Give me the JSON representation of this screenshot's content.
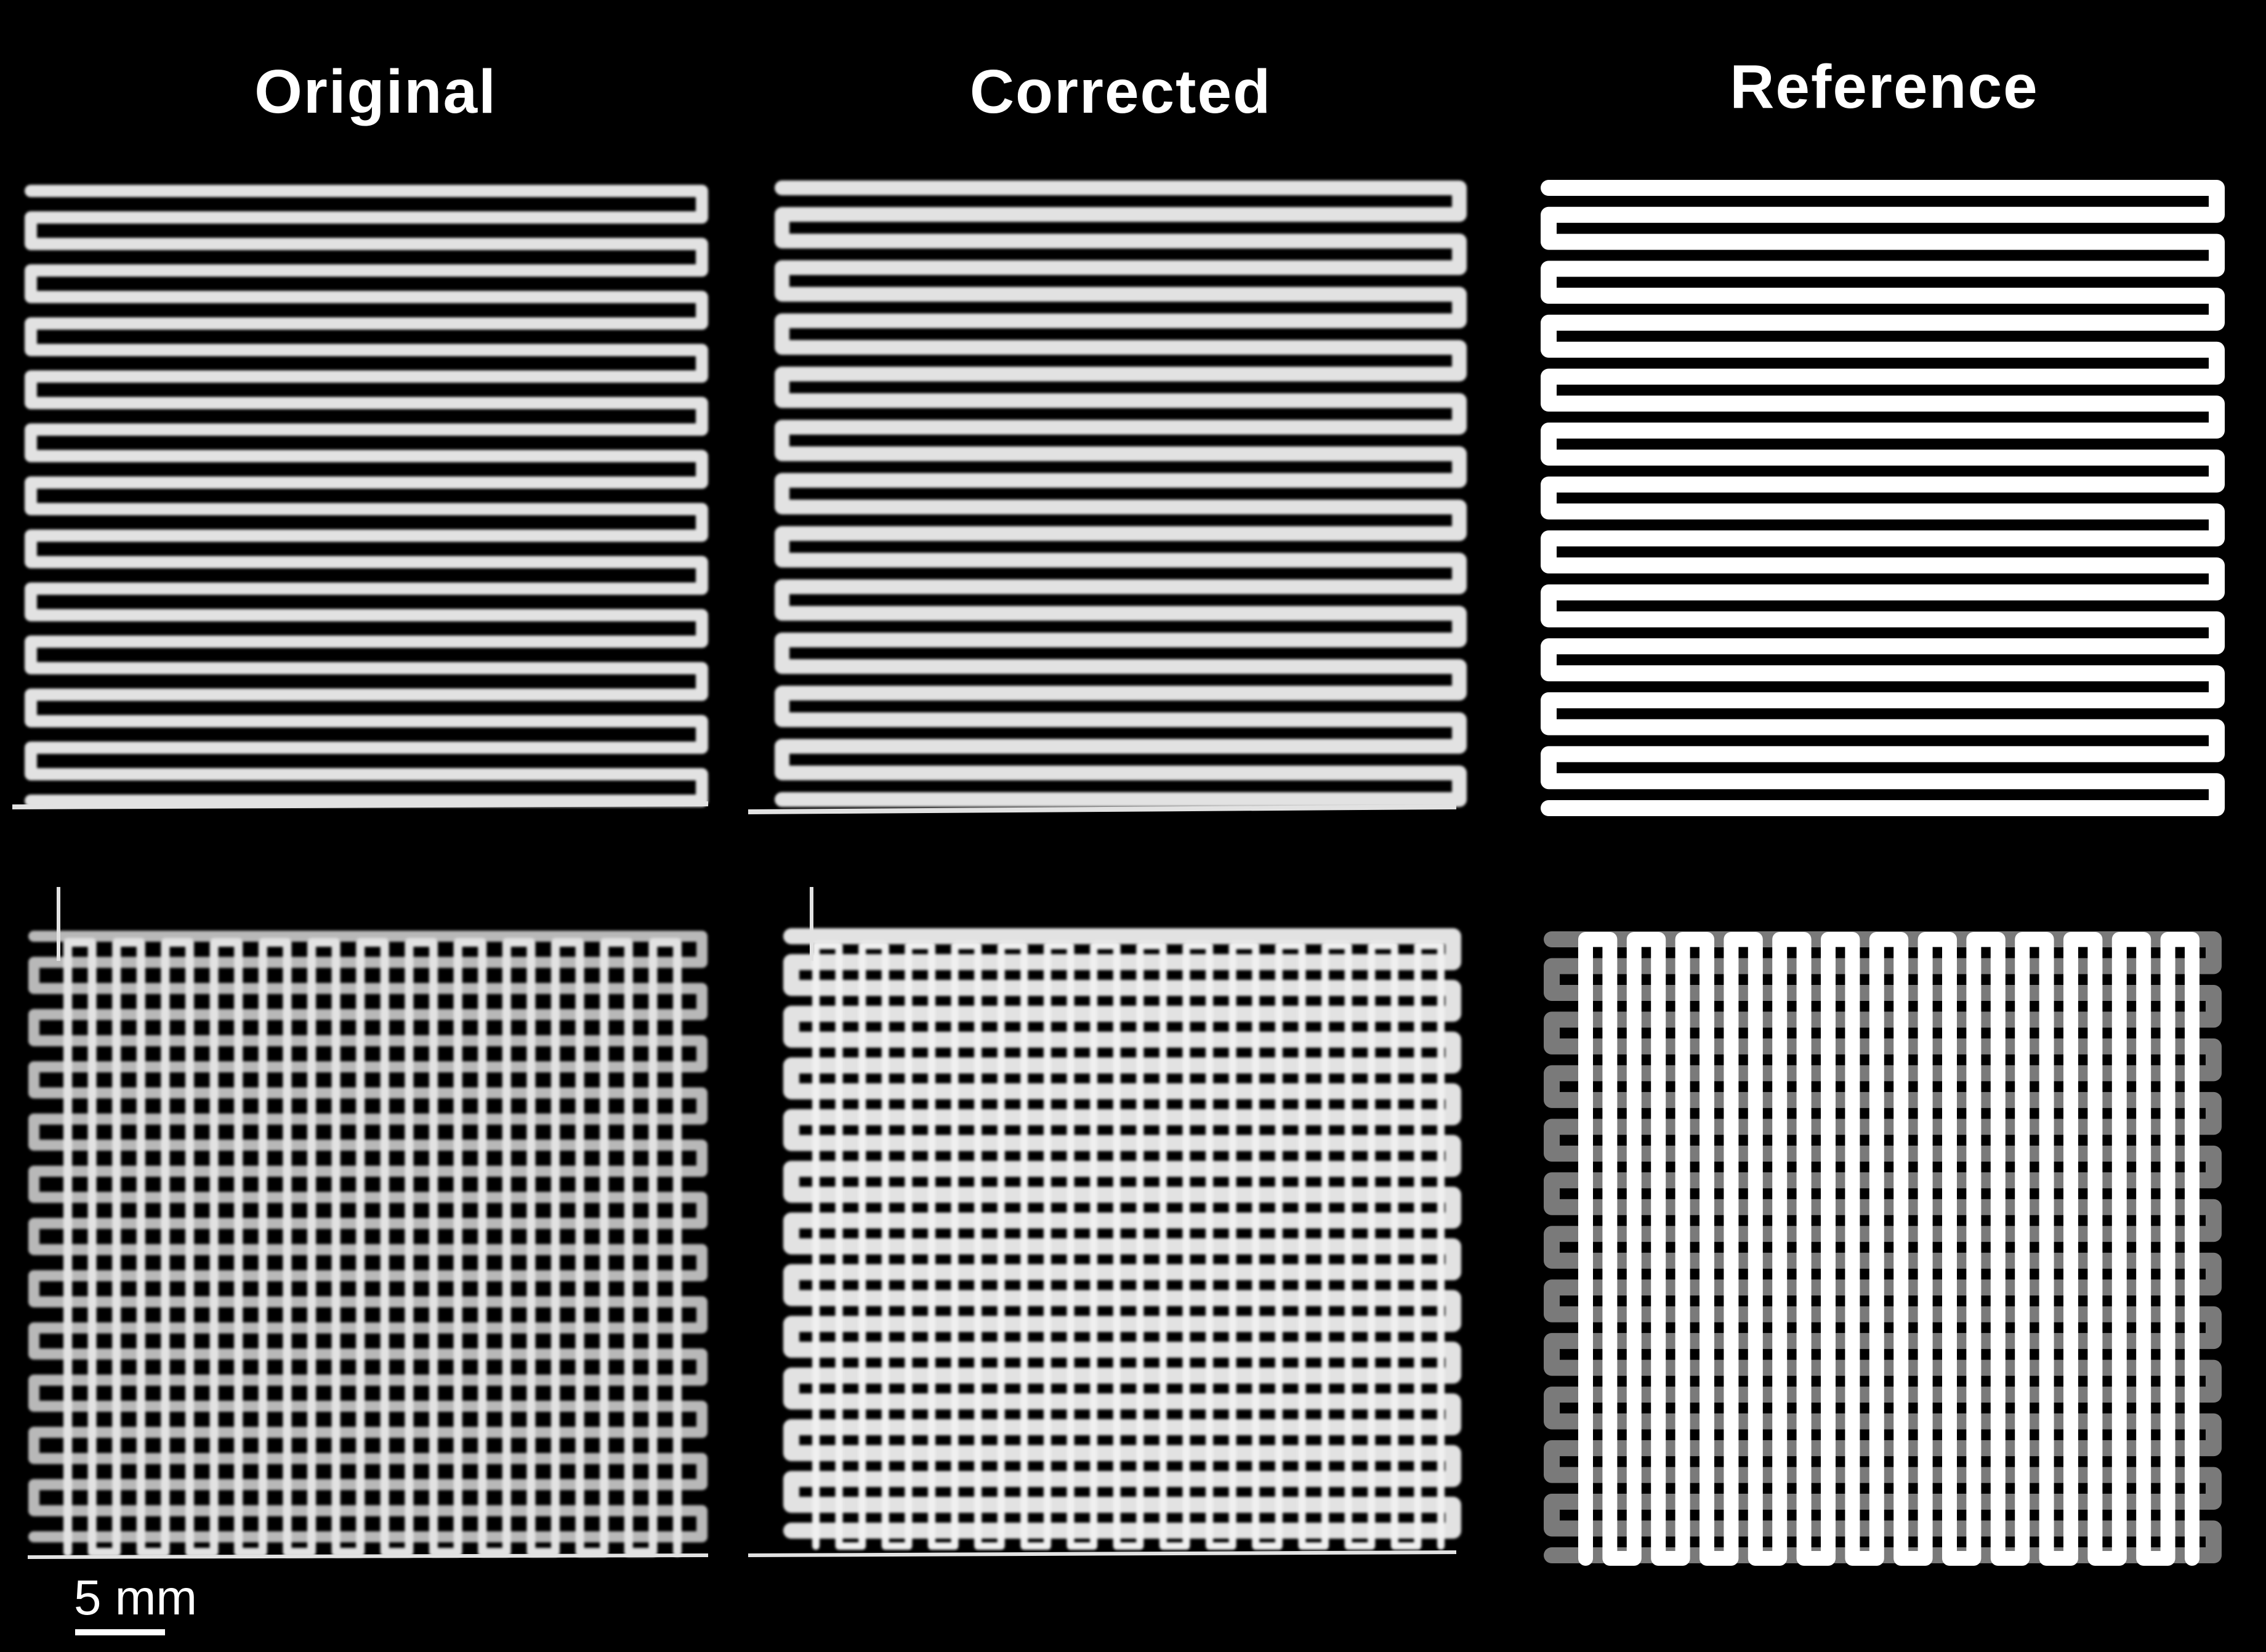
{
  "headers": {
    "original": "Original",
    "corrected": "Corrected",
    "reference": "Reference"
  },
  "scale_bar": {
    "label": "5 mm"
  },
  "colors": {
    "background": "#000000",
    "print": "#e2e2e2",
    "reference": "#ffffff",
    "reference_underlayer": "#7a7a7a"
  }
}
